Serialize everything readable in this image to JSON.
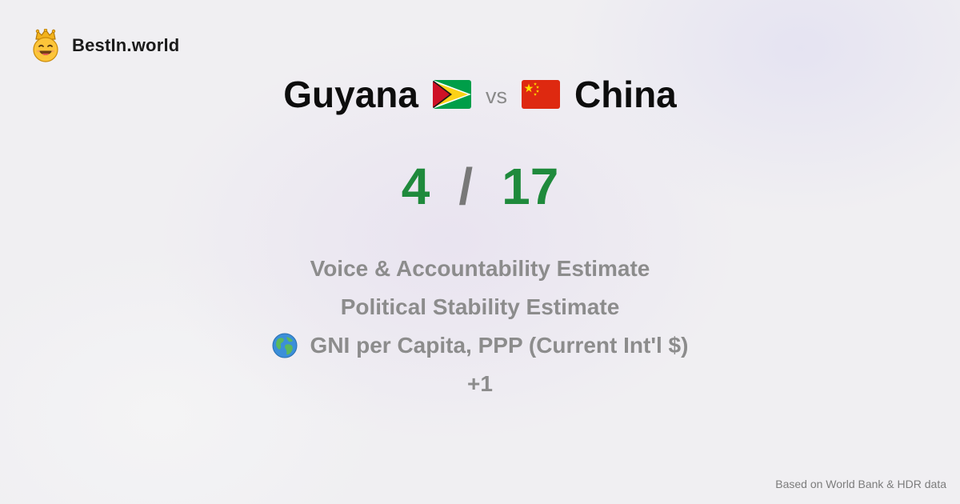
{
  "brand": {
    "name": "BestIn.world",
    "logo_icon": "crowned-smiley-icon"
  },
  "comparison": {
    "country_a": {
      "name": "Guyana",
      "flag_icon": "guyana-flag-icon",
      "score": "4"
    },
    "vs_label": "vs",
    "country_b": {
      "name": "China",
      "flag_icon": "china-flag-icon",
      "score": "17"
    },
    "score_separator": "/"
  },
  "metrics": [
    {
      "label": "Voice & Accountability Estimate"
    },
    {
      "label": "Political Stability Estimate"
    },
    {
      "label": "GNI per Capita, PPP (Current Int'l $)",
      "icon": "globe-icon"
    }
  ],
  "more_label": "+1",
  "footer": {
    "source": "Based on World Bank & HDR data"
  },
  "colors": {
    "score": "#1f8a3c",
    "muted_text": "#8c8c8c",
    "title_text": "#0d0d0d",
    "background": "#f0eff2"
  }
}
